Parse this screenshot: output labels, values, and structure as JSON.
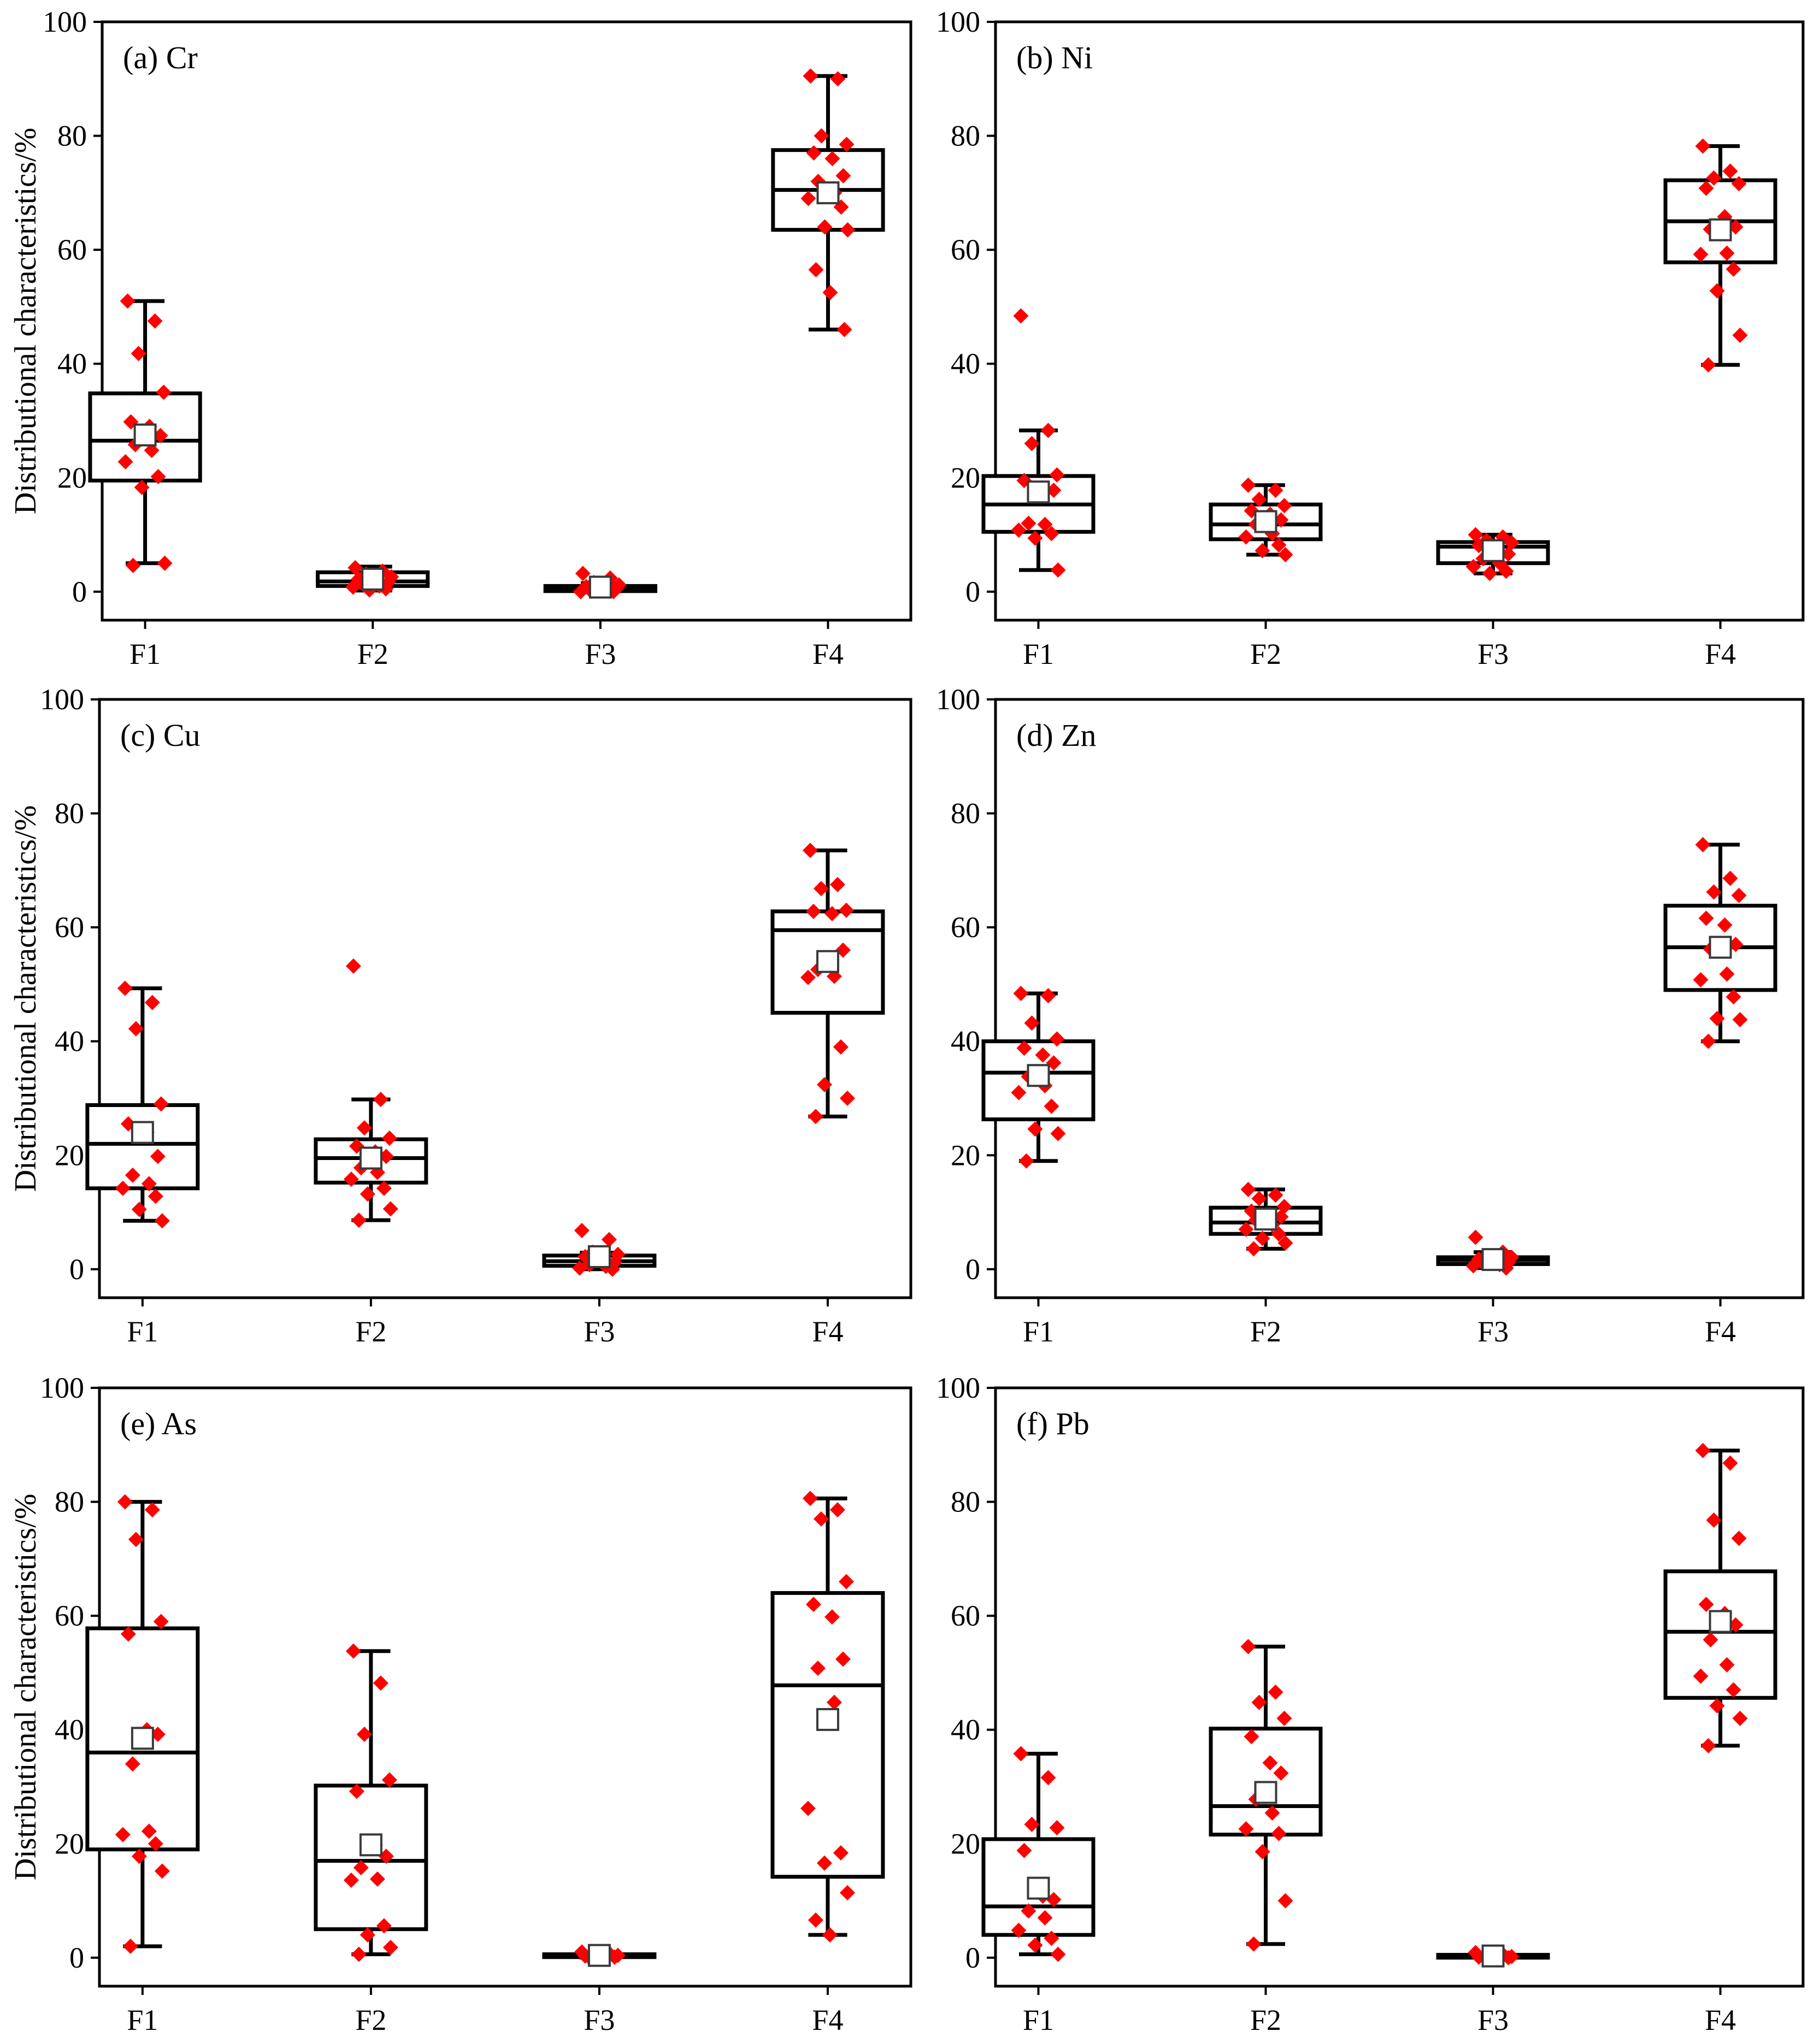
{
  "chart_data": [
    {
      "type": "box",
      "label": "(a) Cr",
      "ylabel": "Distributional characteristics/%",
      "ylim": [
        -5,
        100
      ],
      "yticks": [
        0,
        20,
        40,
        60,
        80,
        100
      ],
      "categories": [
        "F1",
        "F2",
        "F3",
        "F4"
      ],
      "boxes": [
        {
          "min": 5,
          "q1": 19.5,
          "median": 26.5,
          "q3": 34.8,
          "max": 51,
          "mean": 27.5,
          "points": [
            51,
            47.5,
            41.8,
            35,
            29.8,
            29,
            27.4,
            25.8,
            24.8,
            22.8,
            20.2,
            18.3,
            5,
            4.6
          ]
        },
        {
          "min": 0.2,
          "q1": 1,
          "median": 1.8,
          "q3": 3.4,
          "max": 4.4,
          "mean": 2.2,
          "points": [
            4.2,
            3.6,
            3.1,
            2.6,
            2.2,
            1.9,
            1.6,
            1.3,
            1.0,
            0.8,
            0.5,
            0.3
          ]
        },
        {
          "min": 0,
          "q1": 0.1,
          "median": 0.5,
          "q3": 1,
          "max": 1.5,
          "mean": 0.8,
          "points": [
            3.2,
            2.4,
            1.6,
            1.2,
            0.9,
            0.6,
            0.4,
            0.2,
            0.1,
            0.0,
            0.0
          ]
        },
        {
          "min": 46,
          "q1": 63.5,
          "median": 70.5,
          "q3": 77.5,
          "max": 90.5,
          "mean": 70,
          "points": [
            90.5,
            90,
            80,
            78.5,
            77,
            76,
            73,
            72,
            70,
            69,
            67.5,
            64,
            63.5,
            56.5,
            52.5,
            46
          ]
        }
      ]
    },
    {
      "type": "box",
      "label": "(b) Ni",
      "ylabel": "",
      "ylim": [
        -5,
        100
      ],
      "yticks": [
        0,
        20,
        40,
        60,
        80,
        100
      ],
      "categories": [
        "F1",
        "F2",
        "F3",
        "F4"
      ],
      "boxes": [
        {
          "min": 3.8,
          "q1": 10.5,
          "median": 15.3,
          "q3": 20.3,
          "max": 28.3,
          "mean": 17.5,
          "points": [
            48.4,
            28.3,
            26,
            20.5,
            19.5,
            18.2,
            17.8,
            12,
            11.8,
            10.8,
            10.2,
            9.4,
            3.8
          ]
        },
        {
          "min": 6.5,
          "q1": 9.2,
          "median": 11.8,
          "q3": 15.3,
          "max": 18.7,
          "mean": 12.3,
          "points": [
            18.7,
            17.8,
            16.2,
            15.1,
            14.2,
            13.6,
            12.6,
            11.8,
            10.2,
            9.6,
            8.2,
            7.2,
            6.5
          ]
        },
        {
          "min": 3.2,
          "q1": 5,
          "median": 7.9,
          "q3": 8.7,
          "max": 10,
          "mean": 7.2,
          "points": [
            10,
            9.6,
            9,
            8.6,
            8.1,
            7.4,
            6.6,
            5.8,
            5,
            4.4,
            3.6,
            3.2
          ]
        },
        {
          "min": 39.8,
          "q1": 57.8,
          "median": 65,
          "q3": 72.2,
          "max": 78.2,
          "mean": 63.5,
          "points": [
            78.2,
            73.8,
            72.6,
            71.6,
            70.8,
            65.8,
            64,
            63.6,
            59.4,
            59.2,
            56.6,
            52.8,
            45,
            39.8
          ]
        }
      ]
    },
    {
      "type": "box",
      "label": "(c) Cu",
      "ylabel": "Distributional characteristics/%",
      "ylim": [
        -5,
        100
      ],
      "yticks": [
        0,
        20,
        40,
        60,
        80,
        100
      ],
      "categories": [
        "F1",
        "F2",
        "F3",
        "F4"
      ],
      "boxes": [
        {
          "min": 8.5,
          "q1": 14.2,
          "median": 22,
          "q3": 28.8,
          "max": 49.3,
          "mean": 24,
          "points": [
            49.3,
            46.8,
            42.2,
            29,
            25.5,
            24,
            19.8,
            16.5,
            15,
            14.2,
            12.8,
            10.5,
            8.5
          ]
        },
        {
          "min": 8.6,
          "q1": 15.2,
          "median": 19.5,
          "q3": 22.8,
          "max": 29.8,
          "mean": 19.5,
          "points": [
            53.2,
            29.8,
            24.8,
            23,
            21.6,
            20.6,
            19.8,
            17.8,
            17,
            15.8,
            14.2,
            13.2,
            10.6,
            8.6
          ]
        },
        {
          "min": 0,
          "q1": 0.6,
          "median": 1.4,
          "q3": 2.4,
          "max": 2.9,
          "mean": 2.2,
          "points": [
            6.8,
            5.2,
            3,
            2.6,
            2.2,
            1.6,
            1.2,
            0.8,
            0.5,
            0.2,
            0.0
          ]
        },
        {
          "min": 26.8,
          "q1": 45,
          "median": 59.5,
          "q3": 62.8,
          "max": 73.5,
          "mean": 54,
          "points": [
            73.5,
            67.5,
            66.8,
            63,
            62.8,
            62.4,
            56,
            52.6,
            51.4,
            51.2,
            39,
            32.4,
            30,
            26.8
          ]
        }
      ]
    },
    {
      "type": "box",
      "label": "(d) Zn",
      "ylabel": "",
      "ylim": [
        -5,
        100
      ],
      "yticks": [
        0,
        20,
        40,
        60,
        80,
        100
      ],
      "categories": [
        "F1",
        "F2",
        "F3",
        "F4"
      ],
      "boxes": [
        {
          "min": 19,
          "q1": 26.3,
          "median": 34.5,
          "q3": 40,
          "max": 48.4,
          "mean": 34,
          "points": [
            48.4,
            48,
            43.2,
            40.4,
            38.8,
            37.6,
            36.2,
            33.8,
            32.2,
            31,
            28.6,
            24.6,
            23.8,
            19
          ]
        },
        {
          "min": 3.6,
          "q1": 6.2,
          "median": 8.2,
          "q3": 10.8,
          "max": 14,
          "mean": 8.8,
          "points": [
            14,
            13,
            12.4,
            11,
            10.2,
            9.6,
            9.2,
            8.6,
            7.8,
            7,
            6.2,
            5.4,
            4.6,
            3.6
          ]
        },
        {
          "min": 0.2,
          "q1": 0.9,
          "median": 1.6,
          "q3": 2.1,
          "max": 3,
          "mean": 1.7,
          "points": [
            5.6,
            3,
            2.4,
            2.1,
            1.8,
            1.5,
            1.2,
            1,
            0.8,
            0.6,
            0.2
          ]
        },
        {
          "min": 40,
          "q1": 49,
          "median": 56.5,
          "q3": 63.8,
          "max": 74.5,
          "mean": 56.5,
          "points": [
            74.5,
            68.6,
            66.2,
            65.6,
            61.6,
            60.4,
            57,
            56.2,
            51.8,
            50.8,
            47.8,
            44,
            43.8,
            40
          ]
        }
      ]
    },
    {
      "type": "box",
      "label": "(e) As",
      "ylabel": "Distributional characteristics/%",
      "ylim": [
        -5,
        100
      ],
      "yticks": [
        0,
        20,
        40,
        60,
        80,
        100
      ],
      "categories": [
        "F1",
        "F2",
        "F3",
        "F4"
      ],
      "boxes": [
        {
          "min": 2,
          "q1": 19,
          "median": 36,
          "q3": 57.8,
          "max": 80,
          "mean": 38.5,
          "points": [
            80,
            78.6,
            73.4,
            59,
            56.8,
            40,
            39.2,
            34,
            22.2,
            21.6,
            20,
            17.8,
            15.2,
            2
          ]
        },
        {
          "min": 0.6,
          "q1": 5,
          "median": 17,
          "q3": 30.2,
          "max": 53.8,
          "mean": 19.8,
          "points": [
            53.8,
            48.2,
            39.2,
            31.2,
            29.2,
            19.8,
            17.8,
            15.8,
            13.8,
            13.6,
            5.6,
            4,
            1.8,
            0.6
          ]
        },
        {
          "min": 0,
          "q1": 0.1,
          "median": 0.3,
          "q3": 0.6,
          "max": 0.9,
          "mean": 0.4,
          "points": [
            1.0,
            0.8,
            0.6,
            0.4,
            0.3,
            0.2,
            0.1,
            0.0,
            0.0
          ]
        },
        {
          "min": 4,
          "q1": 14.2,
          "median": 47.8,
          "q3": 64,
          "max": 80.6,
          "mean": 41.8,
          "points": [
            80.6,
            78.6,
            77,
            66,
            62,
            59.8,
            52.4,
            50.8,
            44.8,
            26.2,
            18.4,
            16.6,
            11.4,
            6.6,
            4
          ]
        }
      ]
    },
    {
      "type": "box",
      "label": "(f) Pb",
      "ylabel": "",
      "ylim": [
        -5,
        100
      ],
      "yticks": [
        0,
        20,
        40,
        60,
        80,
        100
      ],
      "categories": [
        "F1",
        "F2",
        "F3",
        "F4"
      ],
      "boxes": [
        {
          "min": 0.6,
          "q1": 4,
          "median": 9,
          "q3": 20.8,
          "max": 35.8,
          "mean": 12.2,
          "points": [
            35.8,
            31.6,
            23.4,
            22.8,
            18.8,
            10.8,
            10.2,
            8.2,
            7,
            4.8,
            3.4,
            2.2,
            0.6
          ]
        },
        {
          "min": 2.4,
          "q1": 21.6,
          "median": 26.6,
          "q3": 40.2,
          "max": 54.6,
          "mean": 29,
          "points": [
            54.6,
            46.6,
            44.8,
            42,
            38.8,
            34.2,
            32.4,
            27.8,
            25.4,
            22.6,
            21.8,
            18.6,
            10,
            2.4
          ]
        },
        {
          "min": 0,
          "q1": 0,
          "median": 0.2,
          "q3": 0.5,
          "max": 0.8,
          "mean": 0.3,
          "points": [
            0.9,
            0.6,
            0.4,
            0.2,
            0.1,
            0.0,
            0.0
          ]
        },
        {
          "min": 37.2,
          "q1": 45.6,
          "median": 57.2,
          "q3": 67.8,
          "max": 89,
          "mean": 59,
          "points": [
            89,
            86.8,
            76.8,
            73.6,
            62,
            60.4,
            58.4,
            55.8,
            51.4,
            49.4,
            47,
            44.2,
            42,
            37.2
          ]
        }
      ]
    }
  ]
}
